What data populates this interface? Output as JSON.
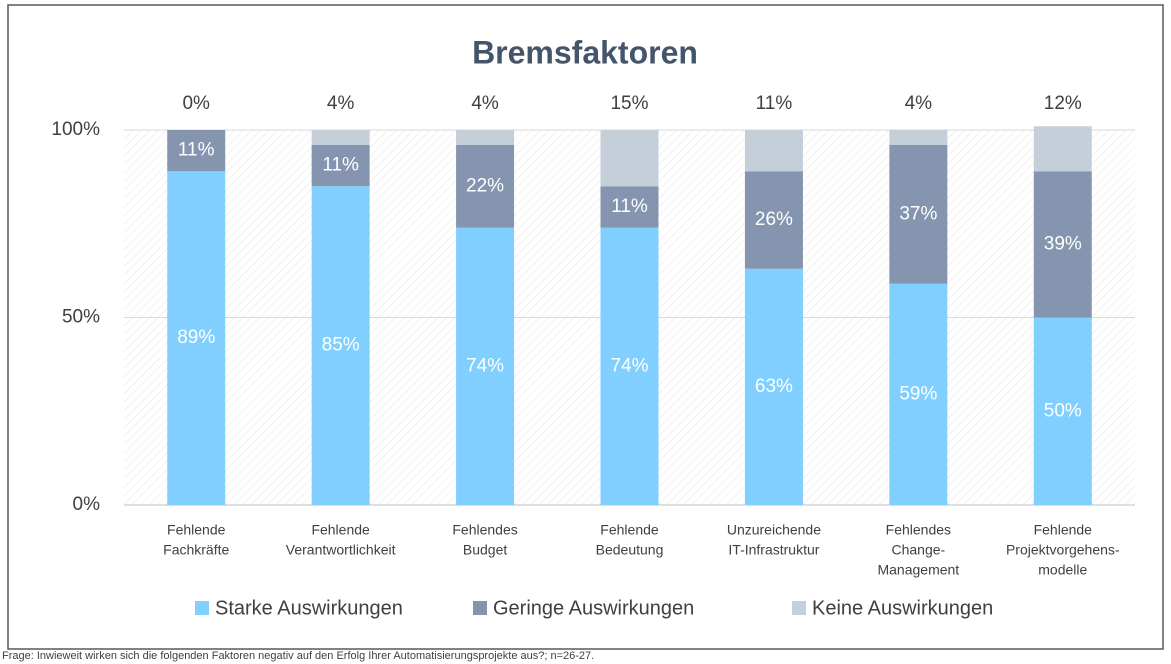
{
  "chart_data": {
    "type": "stacked_bar",
    "title": "Bremsfaktoren",
    "categories": [
      [
        "Fehlende",
        "Fachkräfte"
      ],
      [
        "Fehlende",
        "Verantwortlichkeit"
      ],
      [
        "Fehlendes",
        "Budget"
      ],
      [
        "Fehlende",
        "Bedeutung"
      ],
      [
        "Unzureichende",
        "IT-Infrastruktur"
      ],
      [
        "Fehlendes",
        "Change-",
        "Management"
      ],
      [
        "Fehlende",
        "Projektvorgehens-",
        "modelle"
      ]
    ],
    "series": [
      {
        "name": "Starke Auswirkungen",
        "color": "#80cfff",
        "values": [
          89,
          85,
          74,
          74,
          63,
          59,
          50
        ],
        "value_labels": [
          "89%",
          "85%",
          "74%",
          "74%",
          "63%",
          "59%",
          "50%"
        ]
      },
      {
        "name": "Geringe Auswirkungen",
        "color": "#8595af",
        "values": [
          11,
          11,
          22,
          11,
          26,
          37,
          39
        ],
        "value_labels": [
          "11%",
          "11%",
          "22%",
          "11%",
          "26%",
          "37%",
          "39%"
        ]
      },
      {
        "name": "Keine Auswirkungen",
        "color": "#c5cfda",
        "values": [
          0,
          4,
          4,
          15,
          11,
          4,
          12
        ],
        "value_labels": [
          "0%",
          "4%",
          "4%",
          "15%",
          "11%",
          "4%",
          "12%"
        ]
      }
    ],
    "ylim": [
      0,
      100
    ],
    "yticks": [
      {
        "value": 0,
        "label": "0%"
      },
      {
        "value": 50,
        "label": "50%"
      },
      {
        "value": 100,
        "label": "100%"
      }
    ],
    "grid": true,
    "legend": "bottom",
    "footnote": "Frage: Inwieweit wirken sich die folgenden Faktoren negativ auf den Erfolg Ihrer Automatisierungsprojekte aus?; n=26-27."
  }
}
